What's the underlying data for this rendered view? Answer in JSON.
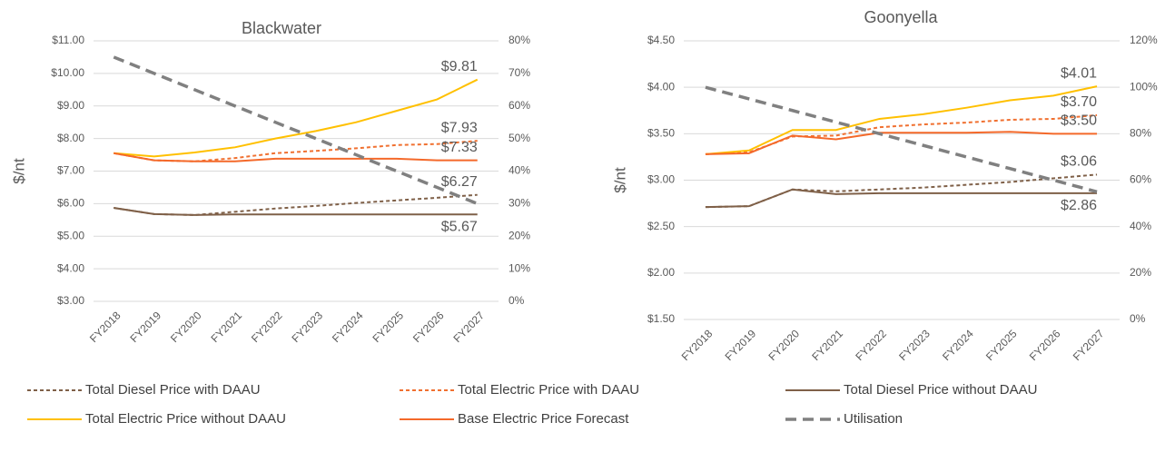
{
  "chart_data": [
    {
      "type": "line",
      "title": "Blackwater",
      "y_label": "$/nt",
      "categories": [
        "FY2018",
        "FY2019",
        "FY2020",
        "FY2021",
        "FY2022",
        "FY2023",
        "FY2024",
        "FY2025",
        "FY2026",
        "FY2027"
      ],
      "ylim": [
        3,
        11
      ],
      "yticks": [
        {
          "value": 3,
          "label": "$3.00"
        },
        {
          "value": 4,
          "label": "$4.00"
        },
        {
          "value": 5,
          "label": "$5.00"
        },
        {
          "value": 6,
          "label": "$6.00"
        },
        {
          "value": 7,
          "label": "$7.00"
        },
        {
          "value": 8,
          "label": "$8.00"
        },
        {
          "value": 9,
          "label": "$9.00"
        },
        {
          "value": 10,
          "label": "$10.00"
        },
        {
          "value": 11,
          "label": "$11.00"
        }
      ],
      "y2lim": [
        0,
        80
      ],
      "y2ticks": [
        {
          "value": 0,
          "label": "0%"
        },
        {
          "value": 10,
          "label": "10%"
        },
        {
          "value": 20,
          "label": "20%"
        },
        {
          "value": 30,
          "label": "30%"
        },
        {
          "value": 40,
          "label": "40%"
        },
        {
          "value": 50,
          "label": "50%"
        },
        {
          "value": 60,
          "label": "60%"
        },
        {
          "value": 70,
          "label": "70%"
        },
        {
          "value": 80,
          "label": "80%"
        }
      ],
      "series": [
        {
          "name": "Total Diesel Price with DAAU",
          "color": "#7f6048",
          "style": "dashed",
          "values": [
            5.87,
            5.68,
            5.65,
            5.75,
            5.85,
            5.93,
            6.02,
            6.1,
            6.18,
            6.27
          ],
          "value_labels": [
            null,
            null,
            null,
            null,
            null,
            null,
            null,
            null,
            null,
            "$6.27"
          ]
        },
        {
          "name": "Total Electric Price with DAAU",
          "color": "#f07030",
          "style": "dashed",
          "values": [
            7.55,
            7.33,
            7.3,
            7.4,
            7.55,
            7.62,
            7.7,
            7.8,
            7.83,
            7.93
          ],
          "value_labels": [
            null,
            null,
            null,
            null,
            null,
            null,
            null,
            null,
            null,
            "$7.93"
          ]
        },
        {
          "name": "Total Diesel Price without DAAU",
          "color": "#7f6048",
          "style": "solid",
          "values": [
            5.87,
            5.68,
            5.65,
            5.67,
            5.67,
            5.67,
            5.67,
            5.67,
            5.67,
            5.67
          ],
          "value_labels": [
            null,
            null,
            null,
            null,
            null,
            null,
            null,
            null,
            null,
            "$5.67"
          ]
        },
        {
          "name": "Total Electric Price without DAAU",
          "color": "#ffc000",
          "style": "solid",
          "values": [
            7.55,
            7.45,
            7.57,
            7.73,
            8.0,
            8.23,
            8.5,
            8.85,
            9.2,
            9.81
          ],
          "value_labels": [
            null,
            null,
            null,
            null,
            null,
            null,
            null,
            null,
            null,
            "$9.81"
          ]
        },
        {
          "name": "Base Electric Price Forecast",
          "color": "#f4692a",
          "style": "solid",
          "values": [
            7.55,
            7.33,
            7.3,
            7.3,
            7.38,
            7.38,
            7.38,
            7.38,
            7.33,
            7.33
          ],
          "value_labels": [
            null,
            null,
            null,
            null,
            null,
            null,
            null,
            null,
            null,
            "$7.33"
          ]
        },
        {
          "name": "Utilisation",
          "color": "#808080",
          "style": "longdash",
          "axis": "y2",
          "values": [
            75,
            70,
            65,
            60,
            55,
            50,
            45,
            40,
            35,
            30
          ]
        }
      ]
    },
    {
      "type": "line",
      "title": "Goonyella",
      "y_label": "$/nt",
      "categories": [
        "FY2018",
        "FY2019",
        "FY2020",
        "FY2021",
        "FY2022",
        "FY2023",
        "FY2024",
        "FY2025",
        "FY2026",
        "FY2027"
      ],
      "ylim": [
        1.5,
        4.5
      ],
      "yticks": [
        {
          "value": 1.5,
          "label": "$1.50"
        },
        {
          "value": 2,
          "label": "$2.00"
        },
        {
          "value": 2.5,
          "label": "$2.50"
        },
        {
          "value": 3,
          "label": "$3.00"
        },
        {
          "value": 3.5,
          "label": "$3.50"
        },
        {
          "value": 4,
          "label": "$4.00"
        },
        {
          "value": 4.5,
          "label": "$4.50"
        }
      ],
      "y2lim": [
        0,
        120
      ],
      "y2ticks": [
        {
          "value": 0,
          "label": "0%"
        },
        {
          "value": 20,
          "label": "20%"
        },
        {
          "value": 40,
          "label": "40%"
        },
        {
          "value": 60,
          "label": "60%"
        },
        {
          "value": 80,
          "label": "80%"
        },
        {
          "value": 100,
          "label": "100%"
        },
        {
          "value": 120,
          "label": "120%"
        }
      ],
      "series": [
        {
          "name": "Total Diesel Price with DAAU",
          "color": "#7f6048",
          "style": "dashed",
          "values": [
            2.71,
            2.72,
            2.9,
            2.88,
            2.9,
            2.92,
            2.95,
            2.98,
            3.02,
            3.06
          ],
          "value_labels": [
            null,
            null,
            null,
            null,
            null,
            null,
            null,
            null,
            null,
            "$3.06"
          ]
        },
        {
          "name": "Total Electric Price with DAAU",
          "color": "#f07030",
          "style": "dashed",
          "values": [
            3.28,
            3.3,
            3.47,
            3.48,
            3.57,
            3.6,
            3.62,
            3.65,
            3.66,
            3.7
          ],
          "value_labels": [
            null,
            null,
            null,
            null,
            null,
            null,
            null,
            null,
            null,
            "$3.70"
          ]
        },
        {
          "name": "Total Diesel Price without DAAU",
          "color": "#7f6048",
          "style": "solid",
          "values": [
            2.71,
            2.72,
            2.9,
            2.85,
            2.86,
            2.86,
            2.86,
            2.86,
            2.86,
            2.86
          ],
          "value_labels": [
            null,
            null,
            null,
            null,
            null,
            null,
            null,
            null,
            null,
            "$2.86"
          ]
        },
        {
          "name": "Total Electric Price without DAAU",
          "color": "#ffc000",
          "style": "solid",
          "values": [
            3.28,
            3.32,
            3.54,
            3.54,
            3.66,
            3.71,
            3.78,
            3.86,
            3.91,
            4.01
          ],
          "value_labels": [
            null,
            null,
            null,
            null,
            null,
            null,
            null,
            null,
            null,
            "$4.01"
          ]
        },
        {
          "name": "Base Electric Price Forecast",
          "color": "#f4692a",
          "style": "solid",
          "values": [
            3.28,
            3.29,
            3.48,
            3.44,
            3.51,
            3.51,
            3.51,
            3.52,
            3.5,
            3.5
          ],
          "value_labels": [
            null,
            null,
            null,
            null,
            null,
            null,
            null,
            null,
            null,
            "$3.50"
          ]
        },
        {
          "name": "Utilisation",
          "color": "#808080",
          "style": "longdash",
          "axis": "y2",
          "values": [
            100,
            95,
            90,
            85,
            80,
            75,
            70,
            65,
            60,
            55
          ]
        }
      ]
    }
  ]
}
